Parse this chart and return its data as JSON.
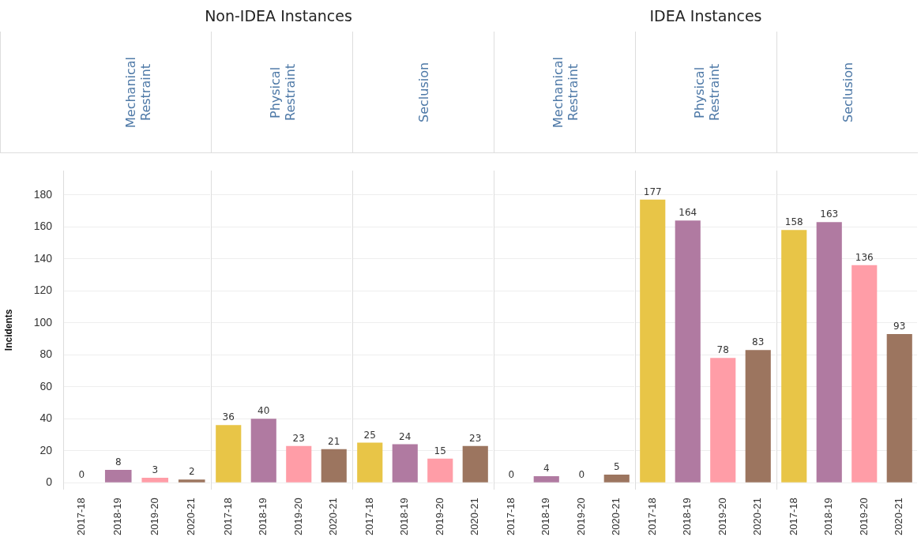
{
  "chart_data": [
    {
      "type": "bar",
      "title": "Mechanical Restraint",
      "annotations": [
        "Non-IDEA Instances"
      ],
      "ylabel": "Incidents",
      "categories": [
        "2017-18",
        "2018-19",
        "2019-20",
        "2020-21"
      ],
      "values": [
        0,
        8,
        3,
        2
      ],
      "colors": [
        "#e8c547",
        "#b07aa1",
        "#ff9da7",
        "#9c755f"
      ],
      "ylim": [
        -4,
        195
      ],
      "yticks": [
        0,
        20,
        40,
        60,
        80,
        100,
        120,
        140,
        160,
        180
      ],
      "grid": "y",
      "data_labels": true
    },
    {
      "type": "bar",
      "title": "Physical Restraint",
      "categories": [
        "2017-18",
        "2018-19",
        "2019-20",
        "2020-21"
      ],
      "values": [
        36,
        40,
        23,
        21
      ],
      "colors": [
        "#e8c547",
        "#b07aa1",
        "#ff9da7",
        "#9c755f"
      ],
      "ylim": [
        -4,
        195
      ],
      "yticks": [
        0,
        20,
        40,
        60,
        80,
        100,
        120,
        140,
        160,
        180
      ],
      "grid": "y",
      "data_labels": true,
      "tick_labels": "x"
    },
    {
      "type": "bar",
      "title": "Seclusion",
      "categories": [
        "2017-18",
        "2018-19",
        "2019-20",
        "2020-21"
      ],
      "values": [
        25,
        24,
        15,
        23
      ],
      "colors": [
        "#e8c547",
        "#b07aa1",
        "#ff9da7",
        "#9c755f"
      ],
      "ylim": [
        -4,
        195
      ],
      "yticks": [
        0,
        20,
        40,
        60,
        80,
        100,
        120,
        140,
        160,
        180
      ],
      "grid": "y",
      "data_labels": true,
      "tick_labels": "x"
    },
    {
      "type": "bar",
      "title": "Mechanical Restraint",
      "annotations": [
        "IDEA Instances"
      ],
      "categories": [
        "2017-18",
        "2018-19",
        "2019-20",
        "2020-21"
      ],
      "values": [
        0,
        4,
        0,
        5
      ],
      "colors": [
        "#e8c547",
        "#b07aa1",
        "#ff9da7",
        "#9c755f"
      ],
      "ylim": [
        -4,
        195
      ],
      "yticks": [
        0,
        20,
        40,
        60,
        80,
        100,
        120,
        140,
        160,
        180
      ],
      "grid": "y",
      "data_labels": true,
      "tick_labels": "x"
    },
    {
      "type": "bar",
      "title": "Physical Restraint",
      "categories": [
        "2017-18",
        "2018-19",
        "2019-20",
        "2020-21"
      ],
      "values": [
        177,
        164,
        78,
        83
      ],
      "colors": [
        "#e8c547",
        "#b07aa1",
        "#ff9da7",
        "#9c755f"
      ],
      "ylim": [
        -4,
        195
      ],
      "yticks": [
        0,
        20,
        40,
        60,
        80,
        100,
        120,
        140,
        160,
        180
      ],
      "grid": "y",
      "data_labels": true,
      "tick_labels": "x"
    },
    {
      "type": "bar",
      "title": "Seclusion",
      "categories": [
        "2017-18",
        "2018-19",
        "2019-20",
        "2020-21"
      ],
      "values": [
        158,
        163,
        136,
        93
      ],
      "colors": [
        "#e8c547",
        "#b07aa1",
        "#ff9da7",
        "#9c755f"
      ],
      "ylim": [
        -4,
        195
      ],
      "yticks": [
        0,
        20,
        40,
        60,
        80,
        100,
        120,
        140,
        160,
        180
      ],
      "grid": "y",
      "data_labels": true,
      "tick_labels": "x"
    }
  ]
}
